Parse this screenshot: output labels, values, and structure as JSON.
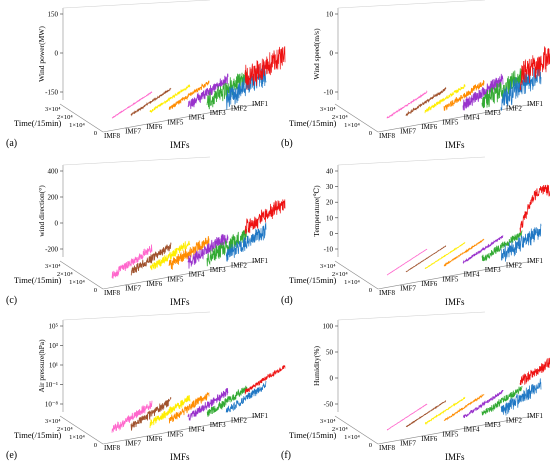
{
  "figure": {
    "common": {
      "xlabel": "IMFs",
      "ylabel": "Time(/15min)",
      "imf_labels": [
        "IMF8",
        "IMF7",
        "IMF6",
        "IMF5",
        "IMF4",
        "IMF3",
        "IMF2",
        "IMF1"
      ],
      "time_ticks": [
        "0",
        "1×10⁴",
        "2×10⁴",
        "3×10⁴"
      ]
    },
    "series_colors": [
      "#ff66cc",
      "#a0522d",
      "#ffee00",
      "#ff8c00",
      "#9933cc",
      "#33aa33",
      "#1f77c4",
      "#ee1111"
    ]
  },
  "chart_data": [
    {
      "type": "line",
      "panel": "(a)",
      "zlabel": "Wind power(MW)",
      "z_ticks": [
        "-150",
        "0",
        "150"
      ],
      "zlim": [
        -150,
        150
      ],
      "xlabel": "IMFs",
      "ylabel": "Time(/15min)",
      "series": [
        {
          "name": "IMF8",
          "amplitude": 2
        },
        {
          "name": "IMF7",
          "amplitude": 4
        },
        {
          "name": "IMF6",
          "amplitude": 6
        },
        {
          "name": "IMF5",
          "amplitude": 10
        },
        {
          "name": "IMF4",
          "amplitude": 25
        },
        {
          "name": "IMF3",
          "amplitude": 40
        },
        {
          "name": "IMF2",
          "amplitude": 50
        },
        {
          "name": "IMF1",
          "amplitude": 60,
          "offset": 60
        }
      ]
    },
    {
      "type": "line",
      "panel": "(b)",
      "zlabel": "Wind speed(m/s)",
      "z_ticks": [
        "-10",
        "0",
        "10"
      ],
      "zlim": [
        -10,
        10
      ],
      "xlabel": "IMFs",
      "ylabel": "Time(/15min)",
      "series": [
        {
          "name": "IMF8",
          "amplitude": 0.2
        },
        {
          "name": "IMF7",
          "amplitude": 0.4
        },
        {
          "name": "IMF6",
          "amplitude": 0.6
        },
        {
          "name": "IMF5",
          "amplitude": 1
        },
        {
          "name": "IMF4",
          "amplitude": 2
        },
        {
          "name": "IMF3",
          "amplitude": 3
        },
        {
          "name": "IMF2",
          "amplitude": 3.5
        },
        {
          "name": "IMF1",
          "amplitude": 4,
          "offset": 5
        }
      ]
    },
    {
      "type": "line",
      "panel": "(c)",
      "zlabel": "wind direction(°)",
      "z_ticks": [
        "-200",
        "0",
        "200",
        "400"
      ],
      "zlim": [
        -200,
        400
      ],
      "xlabel": "IMFs",
      "ylabel": "Time(/15min)",
      "series": [
        {
          "name": "IMF8",
          "amplitude": 40
        },
        {
          "name": "IMF7",
          "amplitude": 40
        },
        {
          "name": "IMF6",
          "amplitude": 40
        },
        {
          "name": "IMF5",
          "amplitude": 50
        },
        {
          "name": "IMF4",
          "amplitude": 60
        },
        {
          "name": "IMF3",
          "amplitude": 70
        },
        {
          "name": "IMF2",
          "amplitude": 70
        },
        {
          "name": "IMF1",
          "amplitude": 70,
          "offset": 190
        }
      ]
    },
    {
      "type": "line",
      "panel": "(d)",
      "zlabel": "Temperature(℃)",
      "z_ticks": [
        "-10",
        "0",
        "10",
        "20",
        "30",
        "40"
      ],
      "zlim": [
        -10,
        40
      ],
      "xlabel": "IMFs",
      "ylabel": "Time(/15min)",
      "series": [
        {
          "name": "IMF8",
          "amplitude": 0.1
        },
        {
          "name": "IMF7",
          "amplitude": 0.2
        },
        {
          "name": "IMF6",
          "amplitude": 0.3
        },
        {
          "name": "IMF5",
          "amplitude": 0.5
        },
        {
          "name": "IMF4",
          "amplitude": 1
        },
        {
          "name": "IMF3",
          "amplitude": 3
        },
        {
          "name": "IMF2",
          "amplitude": 6
        },
        {
          "name": "IMF1",
          "amplitude": 4,
          "offset": 15,
          "arch": 17
        }
      ]
    },
    {
      "type": "line",
      "panel": "(e)",
      "zlabel": "Air pressure(hPa)",
      "z_ticks": [
        "10⁻⁸",
        "10⁻¹",
        "10¹",
        "10³",
        "10⁵"
      ],
      "z_scale": "log",
      "xlabel": "IMFs",
      "ylabel": "Time(/15min)",
      "series": [
        {
          "name": "IMF8",
          "amplitude": 1
        },
        {
          "name": "IMF7",
          "amplitude": 1
        },
        {
          "name": "IMF6",
          "amplitude": 1
        },
        {
          "name": "IMF5",
          "amplitude": 1
        },
        {
          "name": "IMF4",
          "amplitude": 1
        },
        {
          "name": "IMF3",
          "amplitude": 1
        },
        {
          "name": "IMF2",
          "amplitude": 0.8
        },
        {
          "name": "IMF1",
          "amplitude": 0.02,
          "offset": 3
        }
      ]
    },
    {
      "type": "line",
      "panel": "(f)",
      "zlabel": "Humidity(%)",
      "z_ticks": [
        "-50",
        "0",
        "50",
        "100"
      ],
      "zlim": [
        -50,
        100
      ],
      "xlabel": "IMFs",
      "ylabel": "Time(/15min)",
      "series": [
        {
          "name": "IMF8",
          "amplitude": 0.5
        },
        {
          "name": "IMF7",
          "amplitude": 1
        },
        {
          "name": "IMF6",
          "amplitude": 1.5
        },
        {
          "name": "IMF5",
          "amplitude": 2
        },
        {
          "name": "IMF4",
          "amplitude": 4
        },
        {
          "name": "IMF3",
          "amplitude": 8
        },
        {
          "name": "IMF2",
          "amplitude": 15
        },
        {
          "name": "IMF1",
          "amplitude": 12,
          "offset": 50
        }
      ]
    }
  ]
}
